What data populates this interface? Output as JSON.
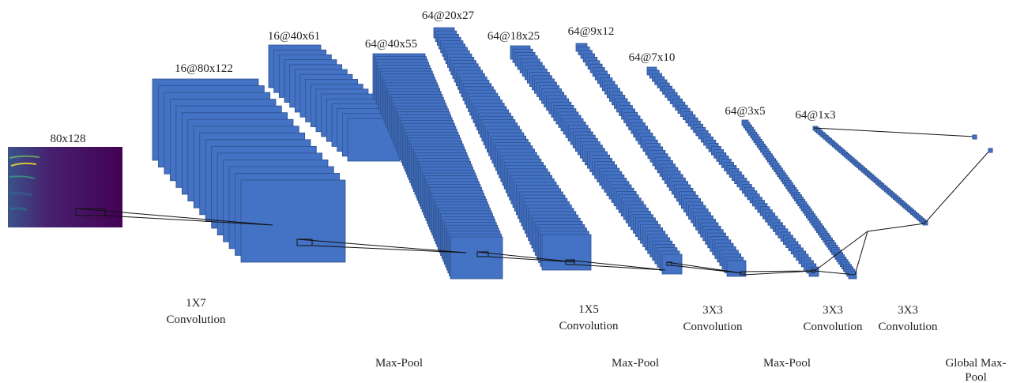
{
  "layers": [
    {
      "label": "80x128"
    },
    {
      "label": "16@80x122"
    },
    {
      "label": "16@40x61"
    },
    {
      "label": "64@40x55"
    },
    {
      "label": "64@20x27"
    },
    {
      "label": "64@18x25"
    },
    {
      "label": "64@9x12"
    },
    {
      "label": "64@7x10"
    },
    {
      "label": "64@3x5"
    },
    {
      "label": "64@1x3"
    }
  ],
  "operations": [
    {
      "lines": [
        "1X7",
        "Convolution"
      ]
    },
    {
      "lines": [
        "Max-Pool"
      ]
    },
    {
      "lines": [
        "1X5",
        "Convolution"
      ]
    },
    {
      "lines": [
        "Max-Pool"
      ]
    },
    {
      "lines": [
        "3X3",
        "Convolution"
      ]
    },
    {
      "lines": [
        "Max-Pool"
      ]
    },
    {
      "lines": [
        "3X3",
        "Convolution"
      ]
    },
    {
      "lines": [
        "3X3",
        "Convolution"
      ]
    },
    {
      "lines": [
        "Global Max-",
        "Pool"
      ]
    }
  ]
}
